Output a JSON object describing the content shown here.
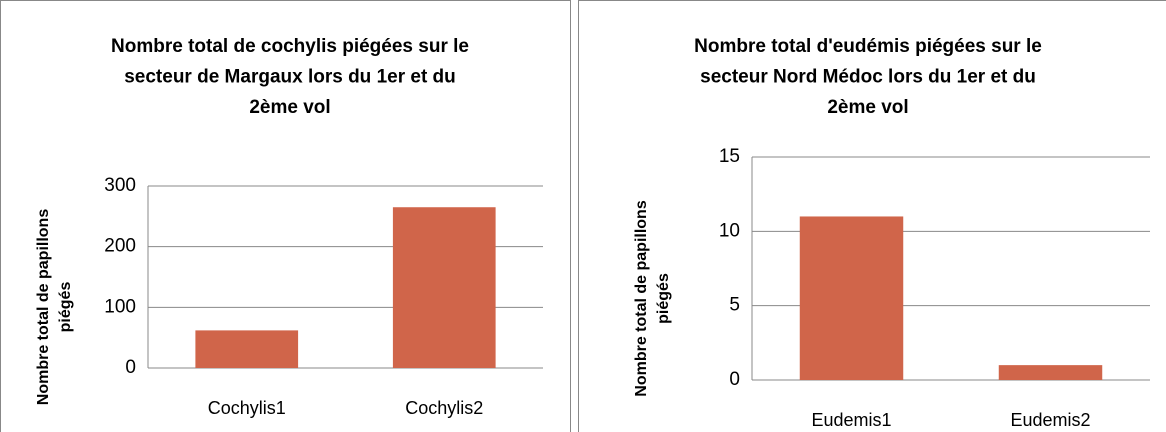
{
  "chart_data": [
    {
      "type": "bar",
      "title": [
        "Nombre total de cochylis piégées sur le",
        "secteur de Margaux lors du 1er et du",
        "2ème vol"
      ],
      "y_label": [
        "Nombre total de papillons",
        "piégés"
      ],
      "categories": [
        "Cochylis1",
        "Cochylis2"
      ],
      "values": [
        62,
        265
      ],
      "color": "#d0654a",
      "ylim": [
        0,
        300
      ],
      "yticks": [
        0,
        100,
        200,
        300
      ],
      "grid": true
    },
    {
      "type": "bar",
      "title": [
        "Nombre total d'eudémis piégées sur le",
        "secteur Nord Médoc lors du 1er et du",
        "2ème vol"
      ],
      "y_label": [
        "Nombre total de papillons",
        "piégés"
      ],
      "categories": [
        "Eudemis1",
        "Eudemis2"
      ],
      "values": [
        11,
        1
      ],
      "color": "#d0654a",
      "ylim": [
        0,
        15
      ],
      "yticks": [
        0,
        5,
        10,
        15
      ],
      "grid": true
    }
  ]
}
